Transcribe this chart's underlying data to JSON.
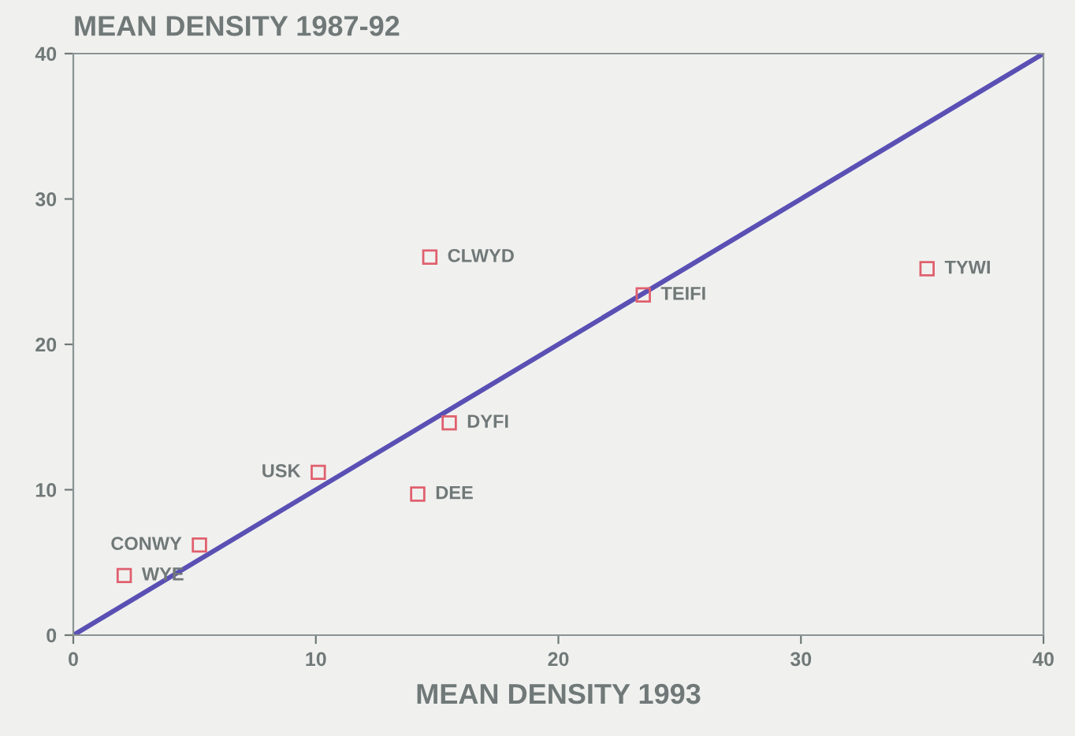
{
  "chart_data": {
    "type": "scatter",
    "ylabel": "MEAN DENSITY 1987-92",
    "xlabel": "MEAN DENSITY 1993",
    "xlim": [
      0,
      40
    ],
    "ylim": [
      0,
      40
    ],
    "xticks": [
      0,
      10,
      20,
      30,
      40
    ],
    "yticks": [
      0,
      10,
      20,
      30,
      40
    ],
    "grid": false,
    "marker": "square",
    "series": [
      {
        "color": "#e0606e",
        "x": [
          14.7,
          23.5,
          35.2,
          15.5,
          10.1,
          14.2,
          5.2,
          2.1
        ],
        "values": [
          26.0,
          23.4,
          25.2,
          14.6,
          11.2,
          9.7,
          6.2,
          4.1
        ]
      },
      {
        "type": "line",
        "color": "#5a50b4",
        "x": [
          0,
          40
        ],
        "values": [
          0,
          40
        ],
        "marker": "none",
        "line_style": "solid"
      }
    ],
    "annotations": [
      {
        "text": "CLWYD",
        "x": 14.7,
        "y": 26.0
      },
      {
        "text": "TEIFI",
        "x": 23.5,
        "y": 23.4
      },
      {
        "text": "TYWI",
        "x": 35.2,
        "y": 25.2
      },
      {
        "text": "DYFI",
        "x": 15.5,
        "y": 14.6
      },
      {
        "text": "USK",
        "x": 10.1,
        "y": 11.2
      },
      {
        "text": "DEE",
        "x": 14.2,
        "y": 9.7
      },
      {
        "text": "CONWY",
        "x": 5.2,
        "y": 6.2
      },
      {
        "text": "WYE",
        "x": 2.1,
        "y": 4.1
      }
    ]
  }
}
